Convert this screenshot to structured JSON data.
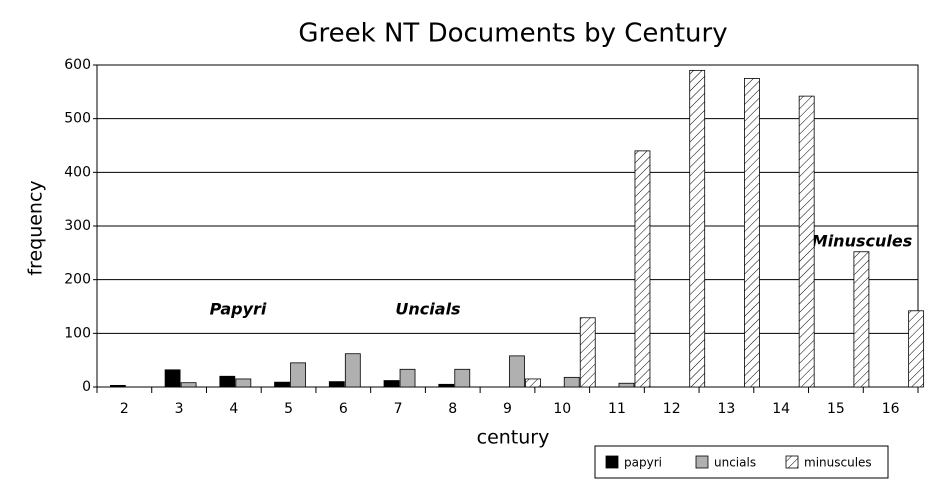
{
  "chart_data": {
    "type": "bar",
    "title": "Greek NT Documents by Century",
    "x_label": "century",
    "y_label": "frequency",
    "categories": [
      "2",
      "3",
      "4",
      "5",
      "6",
      "7",
      "8",
      "9",
      "10",
      "11",
      "12",
      "13",
      "14",
      "15",
      "16"
    ],
    "series": [
      {
        "name": "papyri",
        "color": "#000000",
        "hatch": false,
        "values": [
          3,
          32,
          20,
          9,
          10,
          12,
          5,
          0,
          0,
          0,
          0,
          0,
          0,
          0,
          0
        ]
      },
      {
        "name": "uncials",
        "color": "#b0b0b0",
        "hatch": false,
        "values": [
          0,
          8,
          15,
          45,
          62,
          33,
          33,
          58,
          18,
          7,
          0,
          0,
          0,
          0,
          0
        ]
      },
      {
        "name": "minuscules",
        "color": "#ffffff",
        "hatch": true,
        "values": [
          0,
          0,
          0,
          0,
          0,
          0,
          0,
          15,
          129,
          440,
          590,
          575,
          542,
          252,
          142
        ]
      }
    ],
    "ylim": [
      0,
      600
    ],
    "yticks": [
      0,
      100,
      200,
      300,
      400,
      500,
      600
    ],
    "grid": true,
    "legend": "bottom right",
    "annotations": [
      "Papyri",
      "Uncials",
      "Minuscules"
    ]
  }
}
